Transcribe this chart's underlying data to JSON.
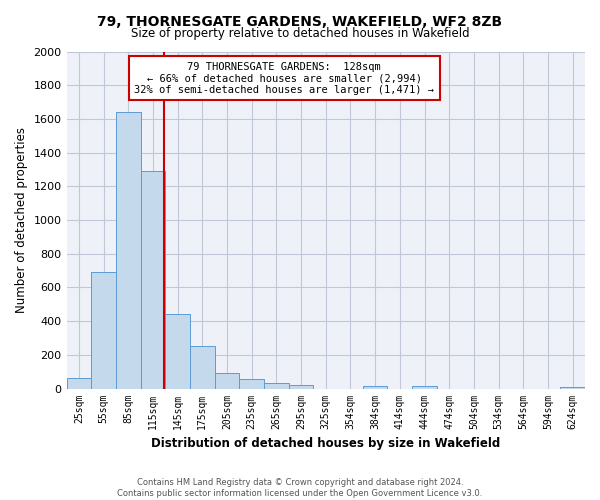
{
  "title": "79, THORNESGATE GARDENS, WAKEFIELD, WF2 8ZB",
  "subtitle": "Size of property relative to detached houses in Wakefield",
  "xlabel": "Distribution of detached houses by size in Wakefield",
  "ylabel": "Number of detached properties",
  "bar_labels": [
    "25sqm",
    "55sqm",
    "85sqm",
    "115sqm",
    "145sqm",
    "175sqm",
    "205sqm",
    "235sqm",
    "265sqm",
    "295sqm",
    "325sqm",
    "354sqm",
    "384sqm",
    "414sqm",
    "444sqm",
    "474sqm",
    "504sqm",
    "534sqm",
    "564sqm",
    "594sqm",
    "624sqm"
  ],
  "bar_values": [
    65,
    690,
    1640,
    1290,
    440,
    255,
    90,
    55,
    30,
    20,
    0,
    0,
    15,
    0,
    15,
    0,
    0,
    0,
    0,
    0,
    10
  ],
  "bar_color": "#c5d9ed",
  "bar_edge_color": "#5b9bd5",
  "vline_color": "#cc0000",
  "vline_x": 3.43,
  "annotation_text": "79 THORNESGATE GARDENS:  128sqm\n← 66% of detached houses are smaller (2,994)\n32% of semi-detached houses are larger (1,471) →",
  "annotation_box_color": "#ffffff",
  "annotation_box_edge_color": "#cc0000",
  "ylim": [
    0,
    2000
  ],
  "yticks": [
    0,
    200,
    400,
    600,
    800,
    1000,
    1200,
    1400,
    1600,
    1800,
    2000
  ],
  "grid_color": "#c0c8d8",
  "footer_line1": "Contains HM Land Registry data © Crown copyright and database right 2024.",
  "footer_line2": "Contains public sector information licensed under the Open Government Licence v3.0.",
  "bg_color": "#ffffff",
  "plot_bg_color": "#eef2f8"
}
